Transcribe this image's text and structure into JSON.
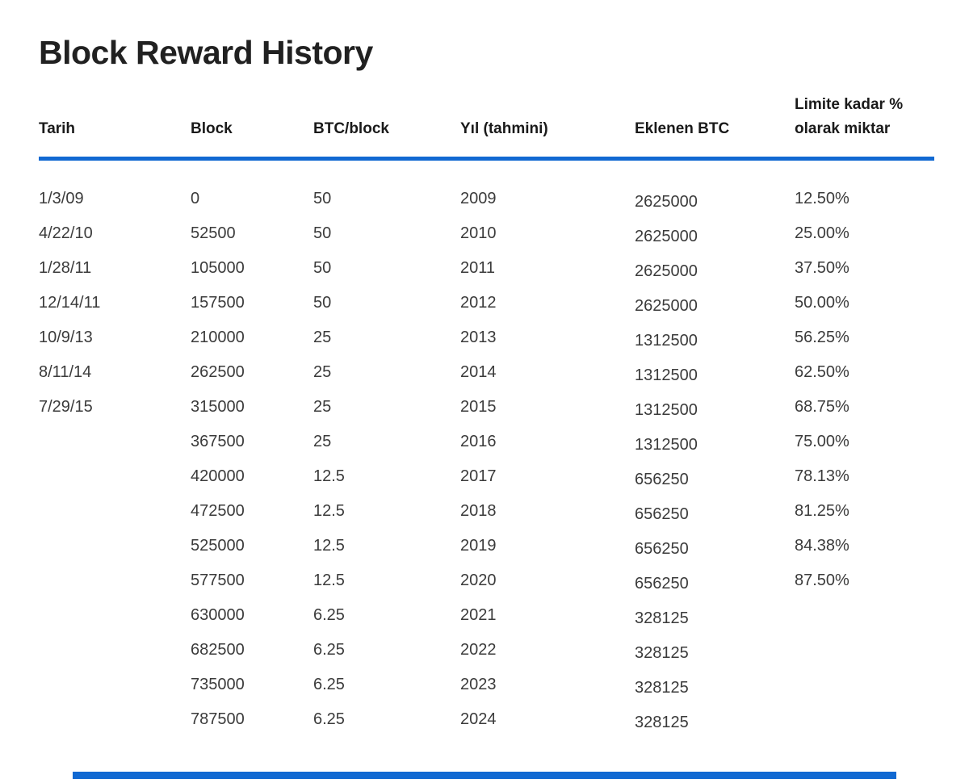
{
  "title": "Block Reward History",
  "colors": {
    "accent": "#1169D2",
    "background": "#FFFFFF",
    "title_text": "#212121",
    "header_text": "#1A1A1A",
    "body_text": "#3B3B3B"
  },
  "table": {
    "headers": [
      "Tarih",
      "Block",
      "BTC/block",
      "Yıl (tahmini)",
      "Eklenen BTC",
      "Limite kadar % olarak miktar"
    ],
    "rows": [
      {
        "tarih": "1/3/09",
        "block": "0",
        "btc_block": "50",
        "yil": "2009",
        "eklenen_btc": "2625000",
        "limit_pct": "12.50%"
      },
      {
        "tarih": "4/22/10",
        "block": "52500",
        "btc_block": "50",
        "yil": "2010",
        "eklenen_btc": "2625000",
        "limit_pct": "25.00%"
      },
      {
        "tarih": "1/28/11",
        "block": "105000",
        "btc_block": "50",
        "yil": "2011",
        "eklenen_btc": "2625000",
        "limit_pct": "37.50%"
      },
      {
        "tarih": "12/14/11",
        "block": "157500",
        "btc_block": "50",
        "yil": "2012",
        "eklenen_btc": "2625000",
        "limit_pct": "50.00%"
      },
      {
        "tarih": "10/9/13",
        "block": "210000",
        "btc_block": "25",
        "yil": "2013",
        "eklenen_btc": "1312500",
        "limit_pct": "56.25%"
      },
      {
        "tarih": "8/11/14",
        "block": "262500",
        "btc_block": "25",
        "yil": "2014",
        "eklenen_btc": "1312500",
        "limit_pct": "62.50%"
      },
      {
        "tarih": "7/29/15",
        "block": "315000",
        "btc_block": "25",
        "yil": "2015",
        "eklenen_btc": "1312500",
        "limit_pct": "68.75%"
      },
      {
        "tarih": "",
        "block": "367500",
        "btc_block": "25",
        "yil": "2016",
        "eklenen_btc": "1312500",
        "limit_pct": "75.00%"
      },
      {
        "tarih": "",
        "block": "420000",
        "btc_block": "12.5",
        "yil": "2017",
        "eklenen_btc": "656250",
        "limit_pct": "78.13%"
      },
      {
        "tarih": "",
        "block": "472500",
        "btc_block": "12.5",
        "yil": "2018",
        "eklenen_btc": "656250",
        "limit_pct": "81.25%"
      },
      {
        "tarih": "",
        "block": "525000",
        "btc_block": "12.5",
        "yil": "2019",
        "eklenen_btc": "656250",
        "limit_pct": "84.38%"
      },
      {
        "tarih": "",
        "block": "577500",
        "btc_block": "12.5",
        "yil": "2020",
        "eklenen_btc": "656250",
        "limit_pct": "87.50%"
      },
      {
        "tarih": "",
        "block": "630000",
        "btc_block": "6.25",
        "yil": "2021",
        "eklenen_btc": "328125",
        "limit_pct": ""
      },
      {
        "tarih": "",
        "block": "682500",
        "btc_block": "6.25",
        "yil": "2022",
        "eklenen_btc": "328125",
        "limit_pct": ""
      },
      {
        "tarih": "",
        "block": "735000",
        "btc_block": "6.25",
        "yil": "2023",
        "eklenen_btc": "328125",
        "limit_pct": ""
      },
      {
        "tarih": "",
        "block": "787500",
        "btc_block": "6.25",
        "yil": "2024",
        "eklenen_btc": "328125",
        "limit_pct": ""
      }
    ]
  },
  "chart_data": {
    "type": "table",
    "title": "Block Reward History",
    "columns": [
      "Tarih",
      "Block",
      "BTC/block",
      "Yıl (tahmini)",
      "Eklenen BTC",
      "Limite kadar % olarak miktar"
    ],
    "rows": [
      [
        "1/3/09",
        0,
        50,
        2009,
        2625000,
        "12.50%"
      ],
      [
        "4/22/10",
        52500,
        50,
        2010,
        2625000,
        "25.00%"
      ],
      [
        "1/28/11",
        105000,
        50,
        2011,
        2625000,
        "37.50%"
      ],
      [
        "12/14/11",
        157500,
        50,
        2012,
        2625000,
        "50.00%"
      ],
      [
        "10/9/13",
        210000,
        25,
        2013,
        1312500,
        "56.25%"
      ],
      [
        "8/11/14",
        262500,
        25,
        2014,
        1312500,
        "62.50%"
      ],
      [
        "7/29/15",
        315000,
        25,
        2015,
        1312500,
        "68.75%"
      ],
      [
        "",
        367500,
        25,
        2016,
        1312500,
        "75.00%"
      ],
      [
        "",
        420000,
        12.5,
        2017,
        656250,
        "78.13%"
      ],
      [
        "",
        472500,
        12.5,
        2018,
        656250,
        "81.25%"
      ],
      [
        "",
        525000,
        12.5,
        2019,
        656250,
        "84.38%"
      ],
      [
        "",
        577500,
        12.5,
        2020,
        656250,
        "87.50%"
      ],
      [
        "",
        630000,
        6.25,
        2021,
        328125,
        ""
      ],
      [
        "",
        682500,
        6.25,
        2022,
        328125,
        ""
      ],
      [
        "",
        735000,
        6.25,
        2023,
        328125,
        ""
      ],
      [
        "",
        787500,
        6.25,
        2024,
        328125,
        ""
      ]
    ]
  }
}
